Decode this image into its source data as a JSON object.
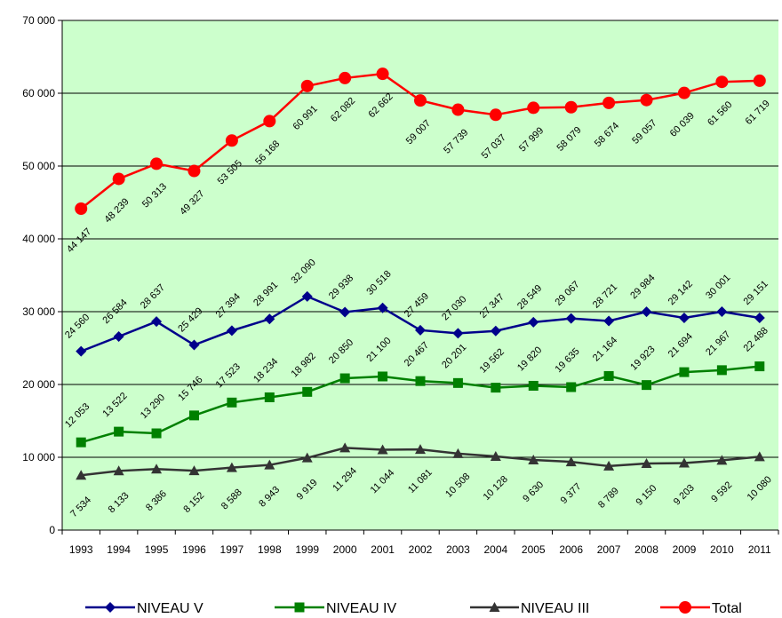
{
  "chart_data": {
    "type": "line",
    "title": "",
    "xlabel": "",
    "ylabel": "",
    "ylim": [
      0,
      70000
    ],
    "yticks": [
      0,
      10000,
      20000,
      30000,
      40000,
      50000,
      60000,
      70000
    ],
    "ytick_labels": [
      "0",
      "10 000",
      "20 000",
      "30 000",
      "40 000",
      "50 000",
      "60 000",
      "70 000"
    ],
    "grid": true,
    "legend_position": "bottom",
    "plot_background": "#ccffcc",
    "categories": [
      "1993",
      "1994",
      "1995",
      "1996",
      "1997",
      "1998",
      "1999",
      "2000",
      "2001",
      "2002",
      "2003",
      "2004",
      "2005",
      "2006",
      "2007",
      "2008",
      "2009",
      "2010",
      "2011"
    ],
    "series": [
      {
        "name": "NIVEAU V",
        "color": "#00008b",
        "marker": "diamond",
        "values": [
          24560,
          26584,
          28637,
          25429,
          27394,
          28991,
          32090,
          29938,
          30518,
          27459,
          27030,
          27347,
          28549,
          29067,
          28721,
          29984,
          29142,
          30001,
          29151
        ],
        "labels": [
          "24 560",
          "26 584",
          "28 637",
          "25 429",
          "27 394",
          "28 991",
          "32 090",
          "29 938",
          "30 518",
          "27 459",
          "27 030",
          "27 347",
          "28 549",
          "29 067",
          "28 721",
          "29 984",
          "29 142",
          "30 001",
          "29 151"
        ]
      },
      {
        "name": "NIVEAU IV",
        "color": "#008000",
        "marker": "square",
        "values": [
          12053,
          13522,
          13290,
          15746,
          17523,
          18234,
          18982,
          20850,
          21100,
          20467,
          20201,
          19562,
          19820,
          19635,
          21164,
          19923,
          21694,
          21967,
          22488
        ],
        "labels": [
          "12 053",
          "13 522",
          "13 290",
          "15 746",
          "17 523",
          "18 234",
          "18 982",
          "20 850",
          "21 100",
          "20 467",
          "20 201",
          "19 562",
          "19 820",
          "19 635",
          "21 164",
          "19 923",
          "21 694",
          "21 967",
          "22 488"
        ]
      },
      {
        "name": "NIVEAU III",
        "color": "#333333",
        "marker": "triangle",
        "values": [
          7534,
          8133,
          8386,
          8152,
          8588,
          8943,
          9919,
          11294,
          11044,
          11081,
          10508,
          10128,
          9630,
          9377,
          8789,
          9150,
          9203,
          9592,
          10080
        ],
        "labels": [
          "7 534",
          "8 133",
          "8 386",
          "8 152",
          "8 588",
          "8 943",
          "9 919",
          "11 294",
          "11 044",
          "11 081",
          "10 508",
          "10 128",
          "9 630",
          "9 377",
          "8 789",
          "9 150",
          "9 203",
          "9 592",
          "10 080"
        ]
      },
      {
        "name": "Total",
        "color": "#ff0000",
        "marker": "circle",
        "values": [
          44147,
          48239,
          50313,
          49327,
          53505,
          56168,
          60991,
          62082,
          62662,
          59007,
          57739,
          57037,
          57999,
          58079,
          58674,
          59057,
          60039,
          61560,
          61719
        ],
        "labels": [
          "44 147",
          "48 239",
          "50 313",
          "49 327",
          "53 505",
          "56 168",
          "60 991",
          "62 082",
          "62 662",
          "59 007",
          "57 739",
          "57 037",
          "57 999",
          "58 079",
          "58 674",
          "59 057",
          "60 039",
          "61 560",
          "61 719"
        ]
      }
    ]
  }
}
